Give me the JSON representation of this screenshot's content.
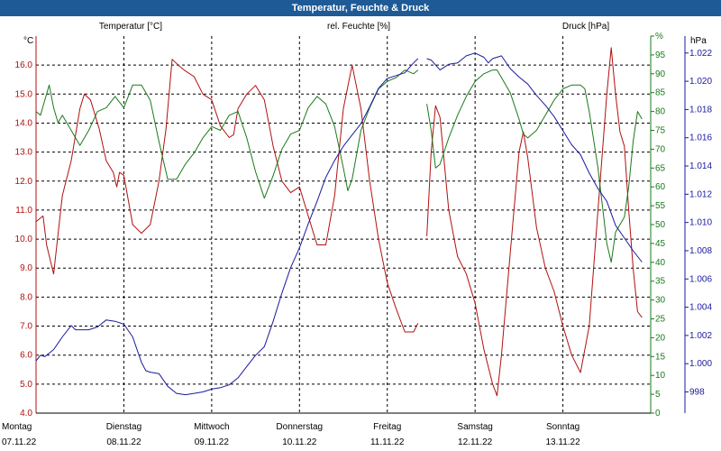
{
  "window": {
    "title": "Temperatur, Feuchte & Druck"
  },
  "colors": {
    "temperature": "#b01010",
    "humidity": "#1a7a1a",
    "pressure": "#1a1aa0",
    "grid": "#000000",
    "titlebar": "#1e5a96"
  },
  "chart_data": {
    "type": "line",
    "title": "Temperatur, Feuchte & Druck",
    "legend": [
      "Temperatur [°C]",
      "rel. Feuchte [%]",
      "Druck [hPa]"
    ],
    "axes": {
      "temperature": {
        "unit_label": "°C",
        "min": 4.0,
        "max": 17.0,
        "ticks": [
          4.0,
          5.0,
          6.0,
          7.0,
          8.0,
          9.0,
          10.0,
          11.0,
          12.0,
          13.0,
          14.0,
          15.0,
          16.0
        ]
      },
      "humidity": {
        "unit_label": "%",
        "min": 0,
        "max": 100,
        "ticks": [
          0,
          5,
          10,
          15,
          20,
          25,
          30,
          35,
          40,
          45,
          50,
          55,
          60,
          65,
          70,
          75,
          80,
          85,
          90,
          95,
          100
        ]
      },
      "pressure": {
        "unit_label": "hPa",
        "min": 996.5,
        "max": 1023.2,
        "ticks": [
          998,
          1.0,
          1.002,
          1.004,
          1.006,
          1.008,
          1.01,
          1.012,
          1.014,
          1.016,
          1.018,
          1.02,
          1.022
        ]
      }
    },
    "pressure_tick_labels": [
      "998",
      "1.000",
      "1.002",
      "1.004",
      "1.006",
      "1.008",
      "1.010",
      "1.012",
      "1.014",
      "1.016",
      "1.018",
      "1.020",
      "1.022"
    ],
    "temperature_tick_labels": [
      "4.0",
      "5.0",
      "6.0",
      "7.0",
      "8.0",
      "9.0",
      "10.0",
      "11.0",
      "12.0",
      "13.0",
      "14.0",
      "15.0",
      "16.0"
    ],
    "humidity_tick_labels": [
      "0",
      "5",
      "10",
      "15",
      "20",
      "25",
      "30",
      "35",
      "40",
      "45",
      "50",
      "55",
      "60",
      "65",
      "70",
      "75",
      "80",
      "85",
      "90",
      "95",
      "%"
    ],
    "x_range_days": [
      0,
      7
    ],
    "days": [
      {
        "weekday": "Montag",
        "date": "07.11.22"
      },
      {
        "weekday": "Dienstag",
        "date": "08.11.22"
      },
      {
        "weekday": "Mittwoch",
        "date": "09.11.22"
      },
      {
        "weekday": "Donnerstag",
        "date": "10.11.22"
      },
      {
        "weekday": "Freitag",
        "date": "11.11.22"
      },
      {
        "weekday": "Samstag",
        "date": "12.11.22"
      },
      {
        "weekday": "Sonntag",
        "date": "13.11.22"
      }
    ],
    "series": [
      {
        "name": "Temperatur [°C]",
        "axis": "temperature",
        "segments": [
          [
            [
              0,
              10.6
            ],
            [
              0.08,
              10.8
            ],
            [
              0.12,
              9.8
            ],
            [
              0.2,
              8.8
            ],
            [
              0.3,
              11.5
            ],
            [
              0.4,
              12.7
            ],
            [
              0.5,
              14.5
            ],
            [
              0.55,
              15.0
            ],
            [
              0.62,
              14.8
            ],
            [
              0.72,
              13.8
            ],
            [
              0.8,
              12.7
            ],
            [
              0.88,
              12.3
            ],
            [
              0.92,
              11.8
            ],
            [
              0.95,
              12.3
            ],
            [
              1.0,
              12.2
            ],
            [
              1.1,
              10.5
            ],
            [
              1.2,
              10.2
            ],
            [
              1.3,
              10.5
            ],
            [
              1.4,
              12.0
            ],
            [
              1.48,
              13.8
            ],
            [
              1.55,
              16.2
            ],
            [
              1.62,
              16.0
            ],
            [
              1.7,
              15.8
            ],
            [
              1.8,
              15.6
            ],
            [
              1.9,
              15.0
            ],
            [
              2.0,
              14.8
            ],
            [
              2.1,
              13.9
            ],
            [
              2.2,
              13.5
            ],
            [
              2.25,
              13.6
            ],
            [
              2.3,
              14.5
            ],
            [
              2.4,
              15.0
            ],
            [
              2.5,
              15.3
            ],
            [
              2.6,
              14.8
            ],
            [
              2.7,
              13.2
            ],
            [
              2.8,
              12.0
            ],
            [
              2.9,
              11.6
            ],
            [
              3.0,
              11.8
            ],
            [
              3.1,
              10.8
            ],
            [
              3.2,
              9.8
            ],
            [
              3.3,
              9.8
            ],
            [
              3.4,
              11.5
            ],
            [
              3.5,
              14.5
            ],
            [
              3.6,
              16.0
            ],
            [
              3.7,
              14.5
            ],
            [
              3.8,
              12.0
            ],
            [
              3.9,
              10.0
            ],
            [
              4.0,
              8.5
            ],
            [
              4.1,
              7.6
            ],
            [
              4.2,
              6.8
            ],
            [
              4.3,
              6.8
            ],
            [
              4.35,
              7.1
            ]
          ],
          [
            [
              4.45,
              10.1
            ],
            [
              4.5,
              13.0
            ],
            [
              4.55,
              14.6
            ],
            [
              4.6,
              14.2
            ],
            [
              4.7,
              11.0
            ],
            [
              4.8,
              9.4
            ],
            [
              4.9,
              8.8
            ],
            [
              5.0,
              7.8
            ],
            [
              5.1,
              6.2
            ],
            [
              5.2,
              5.0
            ],
            [
              5.25,
              4.6
            ],
            [
              5.3,
              6.0
            ],
            [
              5.4,
              9.5
            ],
            [
              5.5,
              13.0
            ],
            [
              5.55,
              13.7
            ],
            [
              5.6,
              12.8
            ],
            [
              5.7,
              10.4
            ],
            [
              5.8,
              9.0
            ],
            [
              5.9,
              8.2
            ],
            [
              6.0,
              7.0
            ],
            [
              6.1,
              6.0
            ],
            [
              6.2,
              5.4
            ],
            [
              6.3,
              7.0
            ],
            [
              6.4,
              11.0
            ],
            [
              6.5,
              15.0
            ],
            [
              6.55,
              16.6
            ],
            [
              6.6,
              15.0
            ],
            [
              6.65,
              13.7
            ],
            [
              6.7,
              13.2
            ],
            [
              6.75,
              11.0
            ],
            [
              6.8,
              9.0
            ],
            [
              6.85,
              7.5
            ],
            [
              6.9,
              7.3
            ]
          ]
        ]
      },
      {
        "name": "rel. Feuchte [%]",
        "axis": "humidity",
        "segments": [
          [
            [
              0,
              80
            ],
            [
              0.05,
              79
            ],
            [
              0.1,
              83
            ],
            [
              0.15,
              87
            ],
            [
              0.2,
              81
            ],
            [
              0.25,
              77
            ],
            [
              0.3,
              79
            ],
            [
              0.4,
              75
            ],
            [
              0.5,
              71
            ],
            [
              0.6,
              75
            ],
            [
              0.7,
              80
            ],
            [
              0.8,
              81
            ],
            [
              0.9,
              84
            ],
            [
              1.0,
              81
            ],
            [
              1.1,
              87
            ],
            [
              1.2,
              87
            ],
            [
              1.3,
              83
            ],
            [
              1.4,
              72
            ],
            [
              1.5,
              62
            ],
            [
              1.6,
              62
            ],
            [
              1.7,
              66
            ],
            [
              1.8,
              69
            ],
            [
              1.9,
              73
            ],
            [
              2.0,
              76
            ],
            [
              2.1,
              75
            ],
            [
              2.2,
              79
            ],
            [
              2.3,
              80
            ],
            [
              2.4,
              73
            ],
            [
              2.5,
              64
            ],
            [
              2.6,
              57
            ],
            [
              2.7,
              63
            ],
            [
              2.8,
              70
            ],
            [
              2.9,
              74
            ],
            [
              3.0,
              75
            ],
            [
              3.1,
              81
            ],
            [
              3.2,
              84
            ],
            [
              3.3,
              82
            ],
            [
              3.4,
              76
            ],
            [
              3.5,
              65
            ],
            [
              3.55,
              59
            ],
            [
              3.6,
              62
            ],
            [
              3.7,
              75
            ],
            [
              3.8,
              81
            ],
            [
              3.9,
              86
            ],
            [
              4.0,
              88
            ],
            [
              4.1,
              89
            ],
            [
              4.2,
              91
            ],
            [
              4.3,
              90
            ],
            [
              4.35,
              91
            ]
          ],
          [
            [
              4.45,
              82
            ],
            [
              4.5,
              75
            ],
            [
              4.55,
              65
            ],
            [
              4.6,
              66
            ],
            [
              4.7,
              73
            ],
            [
              4.8,
              79
            ],
            [
              4.9,
              84
            ],
            [
              5.0,
              88
            ],
            [
              5.1,
              90
            ],
            [
              5.2,
              91
            ],
            [
              5.25,
              91
            ],
            [
              5.3,
              89
            ],
            [
              5.4,
              85
            ],
            [
              5.5,
              78
            ],
            [
              5.55,
              74
            ],
            [
              5.6,
              73
            ],
            [
              5.7,
              75
            ],
            [
              5.8,
              79
            ],
            [
              5.9,
              83
            ],
            [
              6.0,
              86
            ],
            [
              6.1,
              87
            ],
            [
              6.2,
              87
            ],
            [
              6.25,
              86
            ],
            [
              6.3,
              80
            ],
            [
              6.4,
              65
            ],
            [
              6.5,
              45
            ],
            [
              6.55,
              40
            ],
            [
              6.6,
              48
            ],
            [
              6.7,
              52
            ],
            [
              6.75,
              60
            ],
            [
              6.8,
              72
            ],
            [
              6.85,
              80
            ],
            [
              6.9,
              78
            ]
          ]
        ]
      },
      {
        "name": "Druck [hPa]",
        "axis": "pressure",
        "segments": [
          [
            [
              0,
              1000.2
            ],
            [
              0.05,
              1000.6
            ],
            [
              0.1,
              1000.5
            ],
            [
              0.2,
              1001.0
            ],
            [
              0.3,
              1001.9
            ],
            [
              0.4,
              1002.7
            ],
            [
              0.45,
              1002.4
            ],
            [
              0.5,
              1002.4
            ],
            [
              0.6,
              1002.4
            ],
            [
              0.7,
              1002.6
            ],
            [
              0.8,
              1003.1
            ],
            [
              0.9,
              1003.0
            ],
            [
              1.0,
              1002.8
            ],
            [
              1.1,
              1001.9
            ],
            [
              1.2,
              1000.1
            ],
            [
              1.25,
              999.5
            ],
            [
              1.3,
              999.4
            ],
            [
              1.4,
              999.3
            ],
            [
              1.5,
              998.4
            ],
            [
              1.6,
              997.9
            ],
            [
              1.7,
              997.8
            ],
            [
              1.8,
              997.9
            ],
            [
              1.9,
              998.0
            ],
            [
              2.0,
              998.2
            ],
            [
              2.1,
              998.3
            ],
            [
              2.2,
              998.5
            ],
            [
              2.3,
              999.0
            ],
            [
              2.4,
              999.8
            ],
            [
              2.5,
              1000.6
            ],
            [
              2.6,
              1001.2
            ],
            [
              2.7,
              1003.0
            ],
            [
              2.8,
              1005.0
            ],
            [
              2.9,
              1006.8
            ],
            [
              3.0,
              1008.2
            ],
            [
              3.1,
              1009.9
            ],
            [
              3.2,
              1011.5
            ],
            [
              3.3,
              1013.2
            ],
            [
              3.4,
              1014.4
            ],
            [
              3.5,
              1015.4
            ],
            [
              3.6,
              1016.2
            ],
            [
              3.7,
              1017.0
            ],
            [
              3.8,
              1018.2
            ],
            [
              3.9,
              1019.5
            ],
            [
              4.0,
              1020.2
            ],
            [
              4.1,
              1020.4
            ],
            [
              4.2,
              1020.6
            ],
            [
              4.3,
              1021.3
            ],
            [
              4.35,
              1021.6
            ]
          ],
          [
            [
              4.45,
              1021.6
            ],
            [
              4.5,
              1021.5
            ],
            [
              4.6,
              1020.8
            ],
            [
              4.7,
              1021.2
            ],
            [
              4.8,
              1021.3
            ],
            [
              4.9,
              1021.8
            ],
            [
              5.0,
              1022.0
            ],
            [
              5.1,
              1021.7
            ],
            [
              5.15,
              1021.3
            ],
            [
              5.2,
              1021.6
            ],
            [
              5.3,
              1021.8
            ],
            [
              5.4,
              1020.9
            ],
            [
              5.5,
              1020.3
            ],
            [
              5.6,
              1019.8
            ],
            [
              5.7,
              1019.0
            ],
            [
              5.8,
              1018.3
            ],
            [
              5.9,
              1017.5
            ],
            [
              6.0,
              1016.5
            ],
            [
              6.1,
              1015.5
            ],
            [
              6.2,
              1014.8
            ],
            [
              6.3,
              1013.5
            ],
            [
              6.4,
              1012.4
            ],
            [
              6.5,
              1011.5
            ],
            [
              6.6,
              1009.8
            ],
            [
              6.7,
              1008.9
            ],
            [
              6.8,
              1008.0
            ],
            [
              6.9,
              1007.2
            ]
          ]
        ]
      }
    ]
  }
}
